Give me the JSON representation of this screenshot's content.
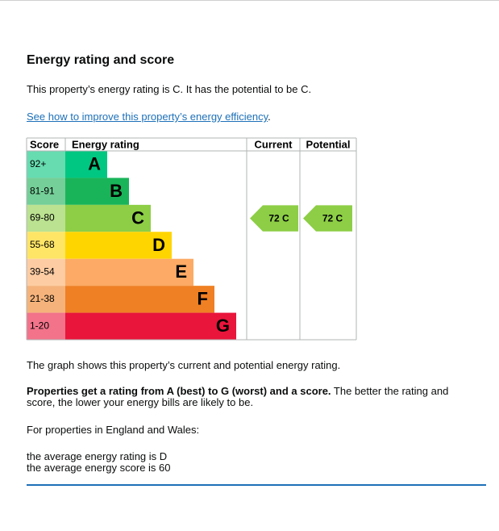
{
  "title": "Energy rating and score",
  "intro": "This property’s energy rating is C. It has the potential to be C.",
  "link": "See how to improve this property’s energy efficiency",
  "link_after": ".",
  "table": {
    "headers": [
      "Score",
      "Energy rating",
      "Current",
      "Potential"
    ],
    "bands": [
      {
        "score": "92+",
        "letter": "A"
      },
      {
        "score": "81-91",
        "letter": "B"
      },
      {
        "score": "69-80",
        "letter": "C"
      },
      {
        "score": "55-68",
        "letter": "D"
      },
      {
        "score": "39-54",
        "letter": "E"
      },
      {
        "score": "21-38",
        "letter": "F"
      },
      {
        "score": "1-20",
        "letter": "G"
      }
    ],
    "current": "72 C",
    "potential": "72 C"
  },
  "graph_note": "The graph shows this property’s current and potential energy rating.",
  "ratings_bold": "Properties get a rating from A (best) to G (worst) and a score.",
  "ratings_rest": " The better the rating and score, the lower your energy bills are likely to be.",
  "region": "For properties in England and Wales:",
  "average_rating": "the average energy rating is D",
  "average_score": "the average energy score is 60"
}
